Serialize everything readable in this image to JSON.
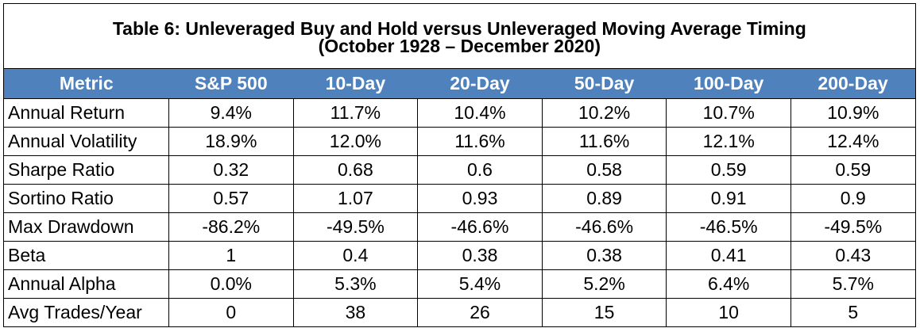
{
  "table": {
    "title_line1": "Table 6: Unleveraged Buy and Hold versus Unleveraged Moving Average Timing",
    "title_line2": "(October 1928 – December 2020)",
    "header_bg": "#4f81bd",
    "columns": [
      "Metric",
      "S&P 500",
      "10-Day",
      "20-Day",
      "50-Day",
      "100-Day",
      "200-Day"
    ],
    "rows": [
      [
        "Annual Return",
        "9.4%",
        "11.7%",
        "10.4%",
        "10.2%",
        "10.7%",
        "10.9%"
      ],
      [
        "Annual Volatility",
        "18.9%",
        "12.0%",
        "11.6%",
        "11.6%",
        "12.1%",
        "12.4%"
      ],
      [
        "Sharpe Ratio",
        "0.32",
        "0.68",
        "0.6",
        "0.58",
        "0.59",
        "0.59"
      ],
      [
        "Sortino Ratio",
        "0.57",
        "1.07",
        "0.93",
        "0.89",
        "0.91",
        "0.9"
      ],
      [
        "Max Drawdown",
        "-86.2%",
        "-49.5%",
        "-46.6%",
        "-46.6%",
        "-46.5%",
        "-49.5%"
      ],
      [
        "Beta",
        "1",
        "0.4",
        "0.38",
        "0.38",
        "0.41",
        "0.43"
      ],
      [
        "Annual Alpha",
        "0.0%",
        "5.3%",
        "5.4%",
        "5.2%",
        "6.4%",
        "5.7%"
      ],
      [
        "Avg Trades/Year",
        "0",
        "38",
        "26",
        "15",
        "10",
        "5"
      ]
    ]
  }
}
